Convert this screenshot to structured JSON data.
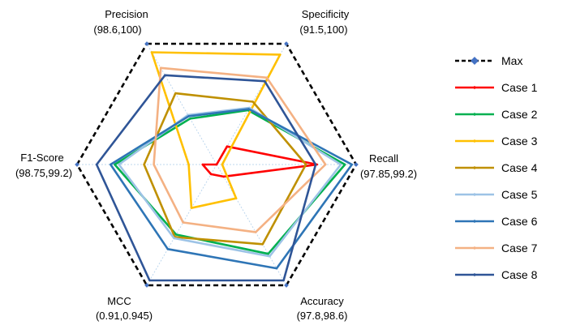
{
  "chart_data": {
    "type": "radar",
    "axes": [
      {
        "name": "Precision",
        "range": "(98.6,100)"
      },
      {
        "name": "Specificity",
        "range": "(91.5,100)"
      },
      {
        "name": "Recall",
        "range": "(97.85,99.2)"
      },
      {
        "name": "Accuracy",
        "range": "(97.8,98.6)"
      },
      {
        "name": "MCC",
        "range": "(0.91,0.945)"
      },
      {
        "name": "F1-Score",
        "range": "(98.75,99.2)"
      }
    ],
    "scale": "each axis normalized to its printed range; values given as fraction of axis (0 = center, 1 = Max)",
    "series": [
      {
        "name": "Max",
        "color": "#000000",
        "values": [
          1.0,
          1.0,
          1.0,
          1.0,
          1.0,
          1.0
        ]
      },
      {
        "name": "Case 1",
        "color": "#ff0000",
        "values": [
          0.0,
          0.15,
          0.72,
          0.1,
          0.08,
          0.1
        ]
      },
      {
        "name": "Case 2",
        "color": "#00b050",
        "values": [
          0.38,
          0.45,
          0.92,
          0.74,
          0.58,
          0.73
        ]
      },
      {
        "name": "Case 3",
        "color": "#ffc000",
        "values": [
          0.93,
          0.91,
          0.04,
          0.28,
          0.36,
          0.2
        ]
      },
      {
        "name": "Case 4",
        "color": "#bf9000",
        "values": [
          0.59,
          0.52,
          0.64,
          0.66,
          0.6,
          0.52
        ]
      },
      {
        "name": "Case 5",
        "color": "#9dc3e6",
        "values": [
          0.41,
          0.47,
          0.89,
          0.76,
          0.61,
          0.7
        ]
      },
      {
        "name": "Case 6",
        "color": "#2e75b6",
        "values": [
          0.4,
          0.46,
          0.97,
          0.86,
          0.7,
          0.76
        ]
      },
      {
        "name": "Case 7",
        "color": "#f4b183",
        "values": [
          0.8,
          0.72,
          0.78,
          0.56,
          0.48,
          0.45
        ]
      },
      {
        "name": "Case 8",
        "color": "#2f5597",
        "values": [
          0.74,
          0.69,
          0.71,
          0.96,
          0.96,
          0.86
        ]
      }
    ],
    "legend_position": "right"
  }
}
